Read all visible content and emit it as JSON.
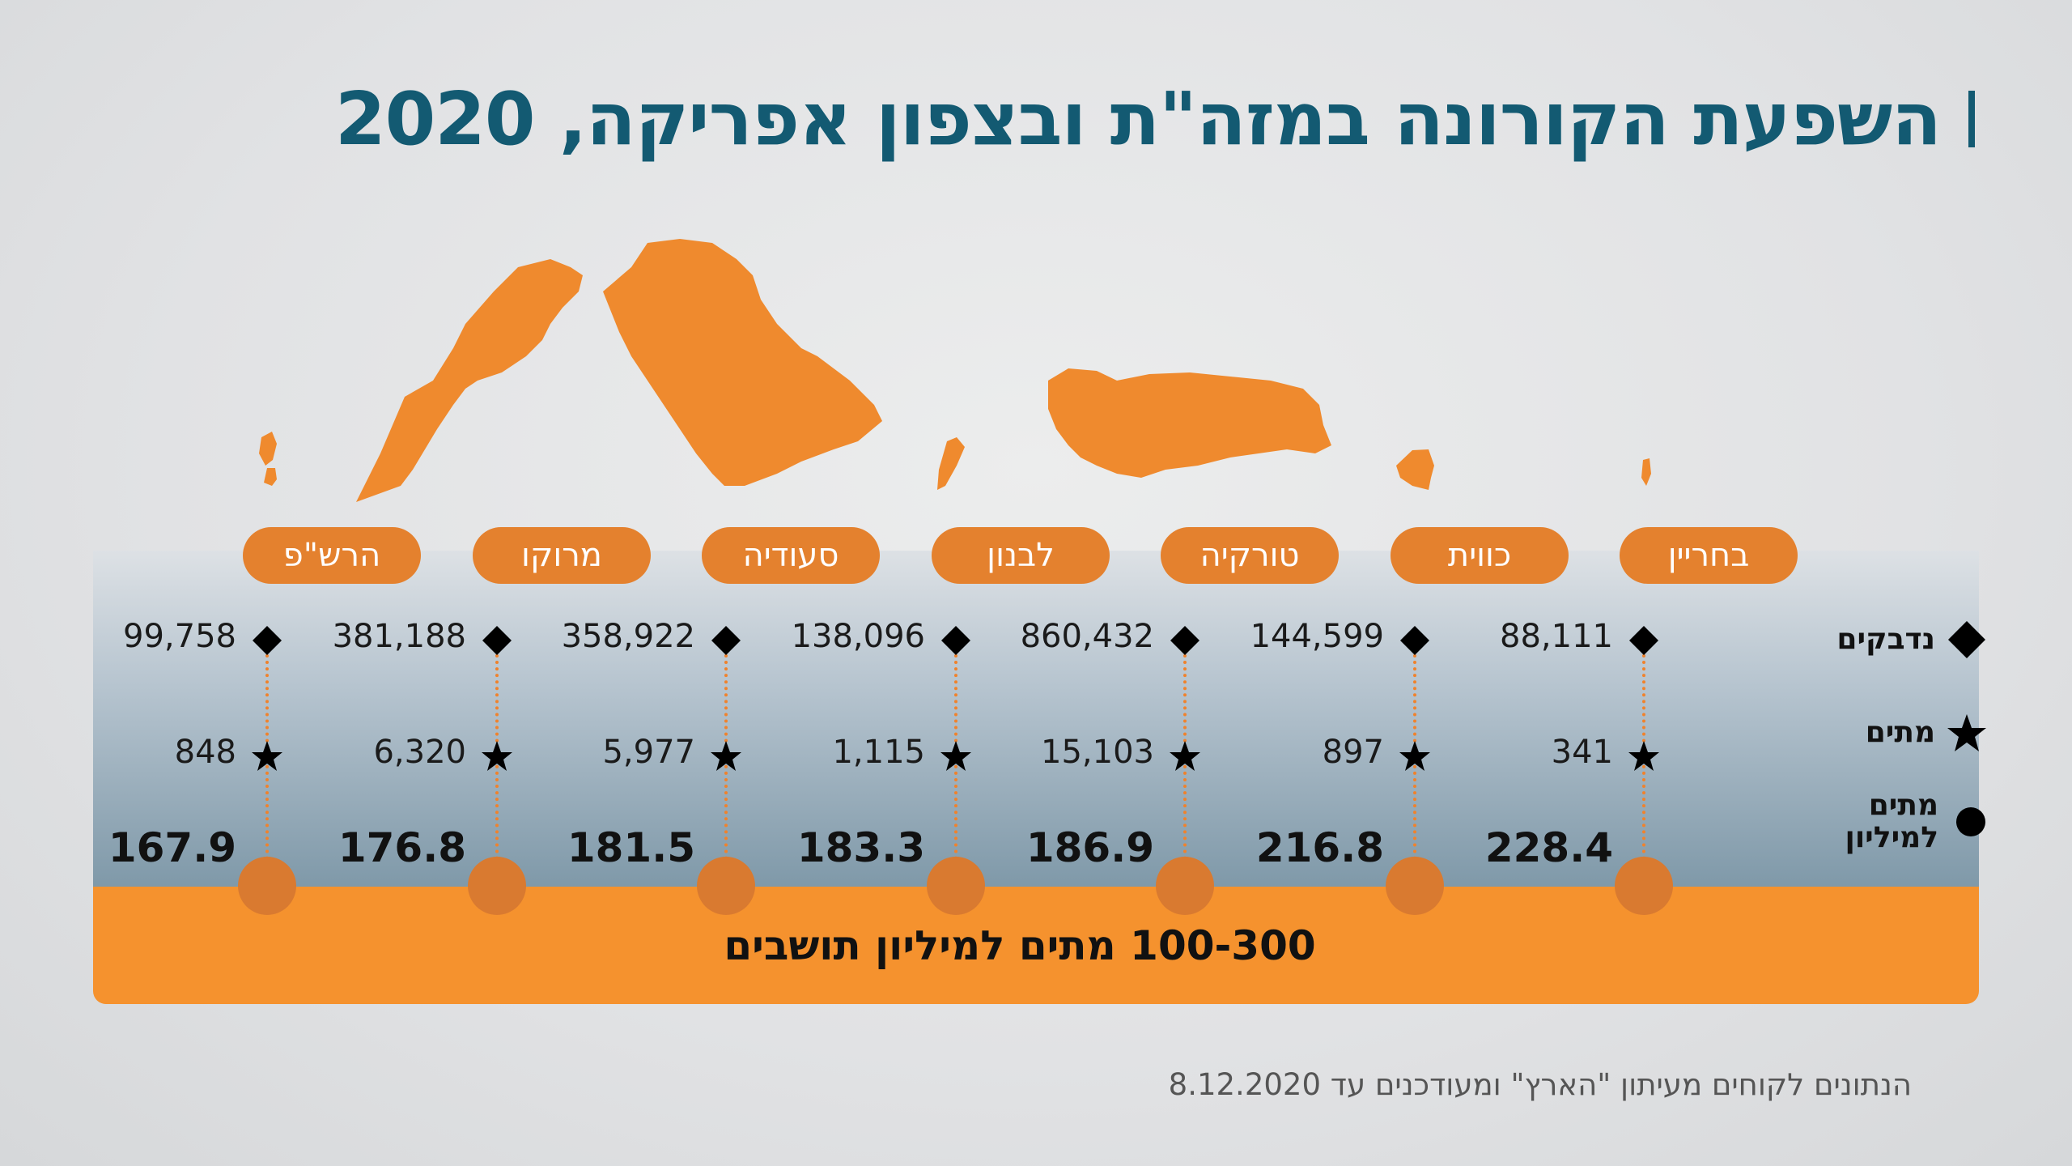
{
  "title": "השפעת הקורונה במזה\"ת ובצפון אפריקה, 2020",
  "legend": {
    "infected": "נדבקים",
    "deaths": "מתים",
    "per_million_line1": "מתים",
    "per_million_line2": "למיליון"
  },
  "band_label": "100-300 מתים למיליון תושבים",
  "source": "הנתונים לקוחים מעיתון \"הארץ\" ומעודכנים עד 8.12.2020",
  "colors": {
    "accent": "#f5922e",
    "pill": "#e4812e",
    "title": "#135a72",
    "circle": "#d97a30"
  },
  "chart_data": {
    "type": "table",
    "title": "השפעת הקורונה במזה\"ת ובצפון אפריקה, 2020",
    "categories": [
      "בחריין",
      "כווית",
      "טורקיה",
      "לבנון",
      "סעודיה",
      "מרוקו",
      "הרש\"פ"
    ],
    "series": [
      {
        "name": "נדבקים",
        "values": [
          "88,111",
          "144,599",
          "860,432",
          "138,096",
          "358,922",
          "381,188",
          "99,758"
        ]
      },
      {
        "name": "מתים",
        "values": [
          "341",
          "897",
          "15,103",
          "1,115",
          "5,977",
          "6,320",
          "848"
        ]
      },
      {
        "name": "מתים למיליון",
        "values": [
          "228.4",
          "216.8",
          "186.9",
          "183.3",
          "181.5",
          "176.8",
          "167.9"
        ]
      }
    ],
    "band_range": [
      100,
      300
    ]
  }
}
